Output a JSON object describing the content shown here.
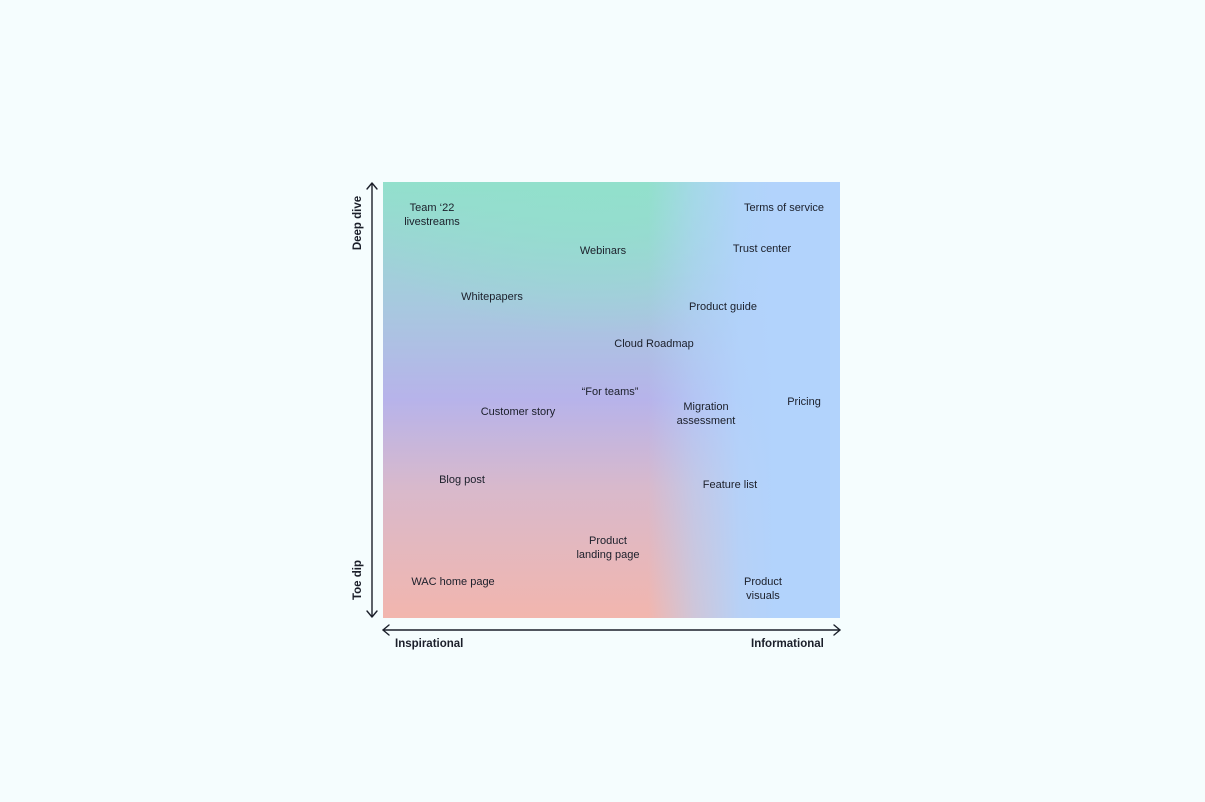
{
  "axes": {
    "y_top": "Deep dive",
    "y_bottom": "Toe dip",
    "x_left": "Inspirational",
    "x_right": "Informational"
  },
  "items": [
    {
      "id": "team22",
      "label": "Team ‘22\nlivestreams"
    },
    {
      "id": "terms",
      "label": "Terms of service"
    },
    {
      "id": "webinars",
      "label": "Webinars"
    },
    {
      "id": "trust",
      "label": "Trust center"
    },
    {
      "id": "whitepapers",
      "label": "Whitepapers"
    },
    {
      "id": "productguide",
      "label": "Product guide"
    },
    {
      "id": "cloudroadmap",
      "label": "Cloud Roadmap"
    },
    {
      "id": "forteams",
      "label": "“For teams”"
    },
    {
      "id": "customerstory",
      "label": "Customer story"
    },
    {
      "id": "migration",
      "label": "Migration\nassessment"
    },
    {
      "id": "pricing",
      "label": "Pricing"
    },
    {
      "id": "blogpost",
      "label": "Blog post"
    },
    {
      "id": "featurelist",
      "label": "Feature list"
    },
    {
      "id": "landing",
      "label": "Product\nlanding page"
    },
    {
      "id": "wachome",
      "label": "WAC home page"
    },
    {
      "id": "visuals",
      "label": "Product\nvisuals"
    }
  ],
  "colors": {
    "top_teal": "#92e0cc",
    "middle_purple": "#b7b3ea",
    "bottom_salmon": "#f2b6ae",
    "right_blue": "#b2d3fc",
    "background": "#f5fdfe",
    "text": "#1b1f2a"
  }
}
